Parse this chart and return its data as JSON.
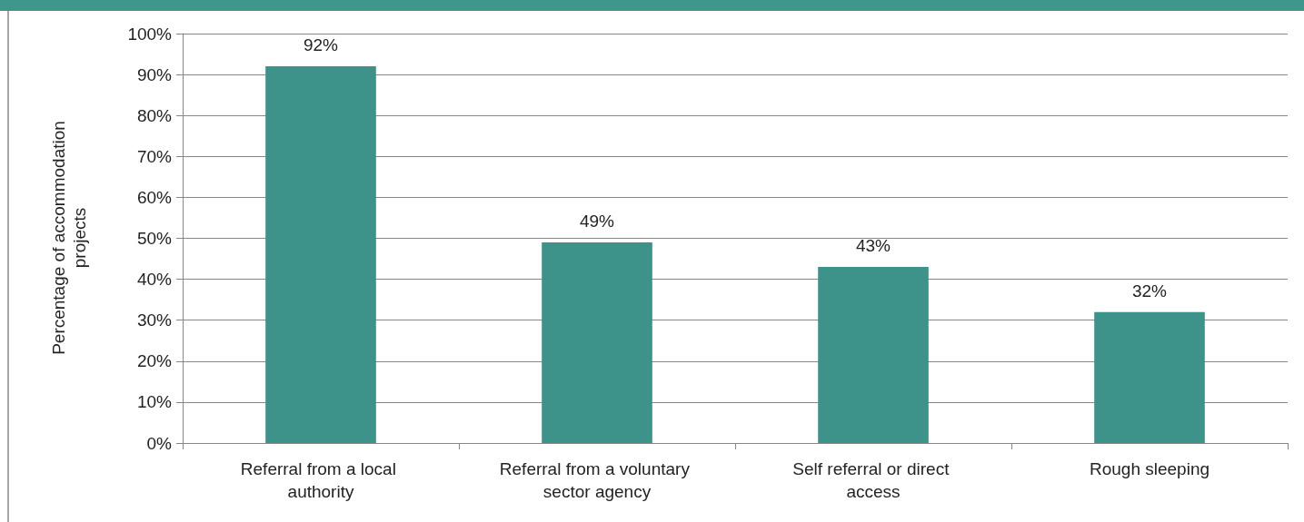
{
  "chart_data": {
    "type": "bar",
    "ylabel": "Percentage of accommodation projects",
    "categories": [
      "Referral from a local authority",
      "Referral from a voluntary sector agency",
      "Self referral or direct access",
      "Rough sleeping"
    ],
    "values": [
      92,
      49,
      43,
      32
    ],
    "color": "#3d9389",
    "value_labels": [
      "92%",
      "49%",
      "43%",
      "32%"
    ],
    "ylim": [
      0,
      100
    ],
    "yticks": [
      {
        "value": 0,
        "label": "0%"
      },
      {
        "value": 10,
        "label": "10%"
      },
      {
        "value": 20,
        "label": "20%"
      },
      {
        "value": 30,
        "label": "30%"
      },
      {
        "value": 40,
        "label": "40%"
      },
      {
        "value": 50,
        "label": "50%"
      },
      {
        "value": 60,
        "label": "60%"
      },
      {
        "value": 70,
        "label": "70%"
      },
      {
        "value": 80,
        "label": "80%"
      },
      {
        "value": 90,
        "label": "90%"
      },
      {
        "value": 100,
        "label": "100%"
      }
    ],
    "grid": "y"
  }
}
